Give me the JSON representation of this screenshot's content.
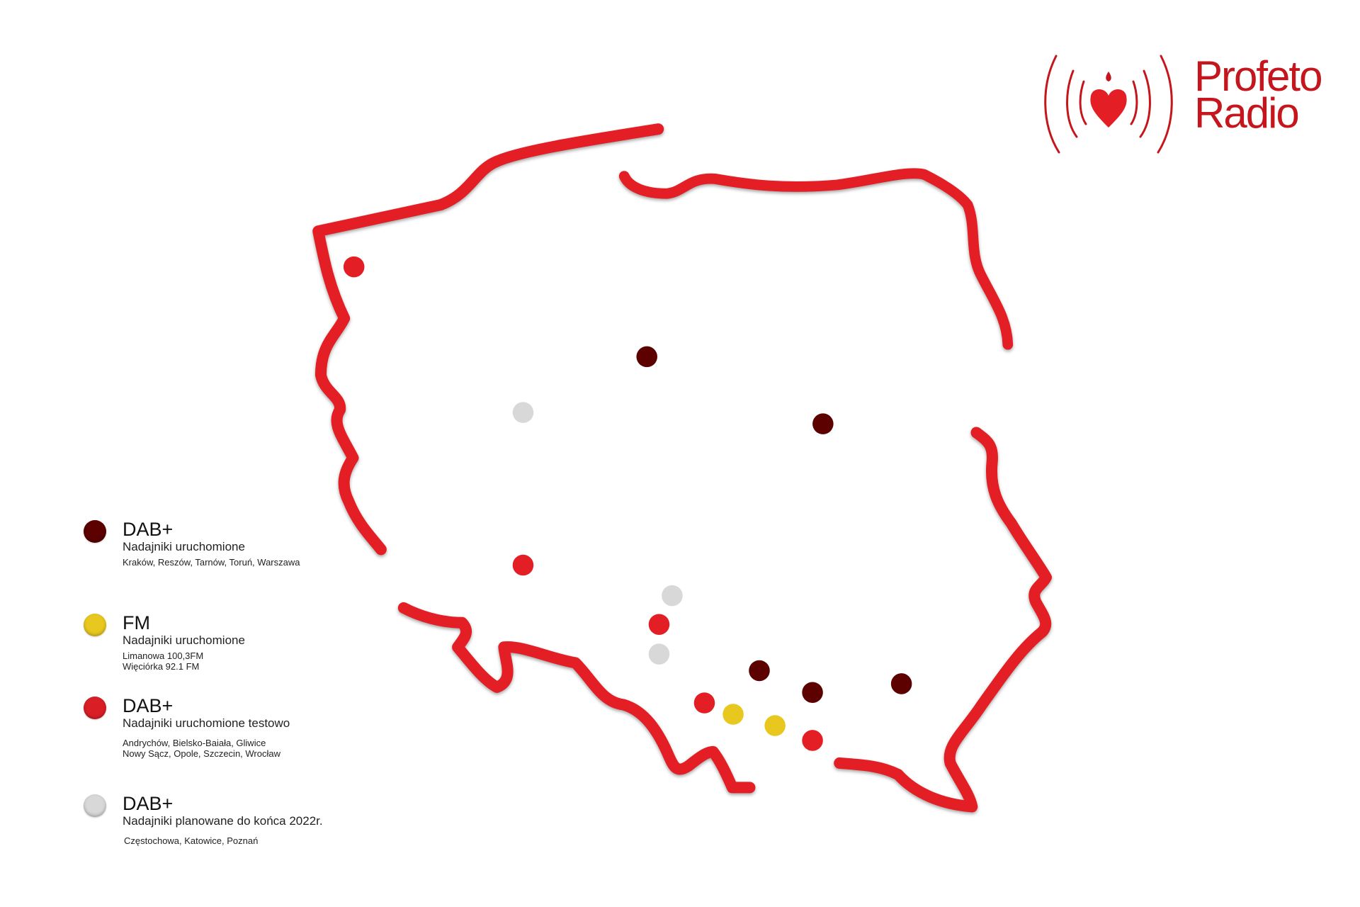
{
  "logo": {
    "line1": "Profeto",
    "line2": "Radio",
    "color": "#c4161c",
    "icon": "heart-radio-waves-icon"
  },
  "map": {
    "outline_color": "#e31e24",
    "region": "Poland"
  },
  "legend": [
    {
      "title": "DAB+",
      "subtitle": "Nadajniki uruchomione",
      "cities": [
        "Kraków, Reszów, Tarnów, Toruń, Warszawa"
      ],
      "color": "#5c0000"
    },
    {
      "title": "FM",
      "subtitle": "Nadajniki uruchomione",
      "cities": [
        "Limanowa 100,3FM",
        "Więciórka 92.1 FM"
      ],
      "color": "#e8c81e"
    },
    {
      "title": "DAB+",
      "subtitle": "Nadajniki uruchomione testowo",
      "cities": [
        "Andrychów, Bielsko-Baiała, Gliwice",
        "Nowy Sącz, Opole, Szczecin, Wrocław"
      ],
      "color": "#d91e26"
    },
    {
      "title": "DAB+",
      "subtitle": "Nadajniki planowane do końca 2022r.",
      "cities": [
        "Częstochowa, Katowice, Poznań"
      ],
      "color": "#d8d8d8"
    }
  ]
}
